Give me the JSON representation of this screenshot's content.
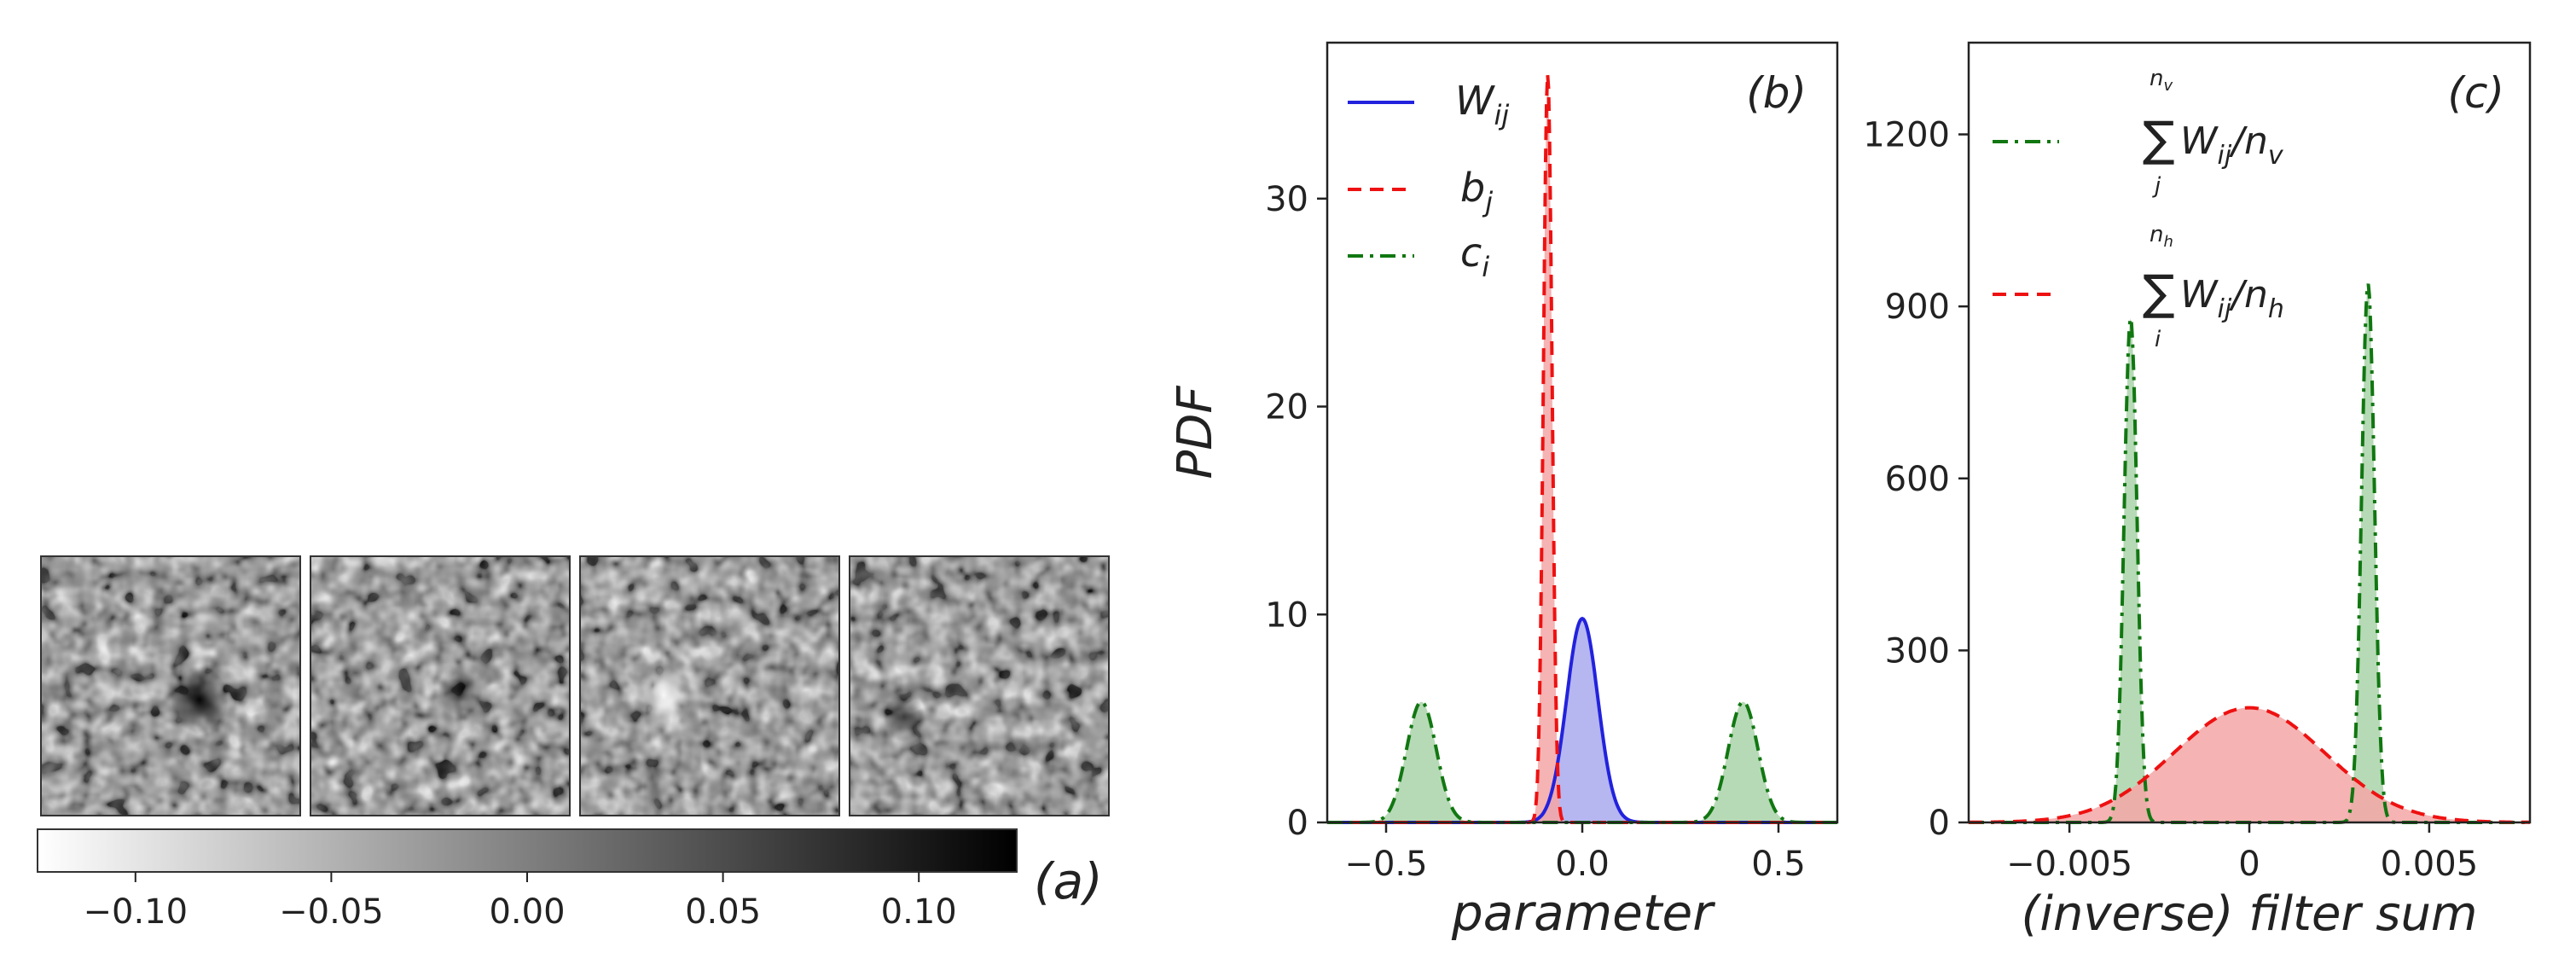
{
  "chart_data": [
    {
      "panel": "a",
      "type": "heatmap",
      "label": "(a)",
      "n_filters": 4,
      "colorbar": {
        "range": [
          -0.125,
          0.125
        ],
        "ticks": [
          -0.1,
          -0.05,
          0.0,
          0.05,
          0.1
        ],
        "tick_labels": [
          "−0.10",
          "−0.05",
          "0.00",
          "0.05",
          "0.10"
        ],
        "colormap": "gray_r"
      }
    },
    {
      "panel": "b",
      "type": "line",
      "label": "(b)",
      "xlabel": "parameter",
      "ylabel": "PDF",
      "xlim": [
        -0.65,
        0.65
      ],
      "ylim": [
        0,
        37.5
      ],
      "xticks": [
        -0.5,
        0.0,
        0.5
      ],
      "xtick_labels": [
        "−0.5",
        "0.0",
        "0.5"
      ],
      "yticks": [
        0,
        10,
        20,
        30
      ],
      "ytick_labels": [
        "0",
        "10",
        "20",
        "30"
      ],
      "legend": "top-left",
      "series": [
        {
          "name": "W_ij",
          "legend_main": "W",
          "legend_sub": "ij",
          "color": "#2222dd",
          "style": "solid",
          "components": [
            {
              "mean": 0.0,
              "peak": 9.8,
              "sigma": 0.04
            }
          ],
          "fill": "#a9a9ee"
        },
        {
          "name": "b_j",
          "legend_main": "b",
          "legend_sub": "j",
          "color": "#ee1111",
          "style": "dashed",
          "components": [
            {
              "mean": -0.088,
              "peak": 36.0,
              "sigma": 0.011
            }
          ],
          "fill": "#f4a6a6"
        },
        {
          "name": "c_i",
          "legend_main": "c",
          "legend_sub": "i",
          "color": "#117711",
          "style": "dashdot",
          "components": [
            {
              "mean": -0.41,
              "peak": 5.8,
              "sigma": 0.038
            },
            {
              "mean": 0.41,
              "peak": 5.8,
              "sigma": 0.038
            }
          ],
          "fill": "#a9d3a9"
        }
      ]
    },
    {
      "panel": "c",
      "type": "line",
      "label": "(c)",
      "xlabel": "(inverse) filter sum",
      "ylabel": "",
      "xlim": [
        -0.0078,
        0.0078
      ],
      "ylim": [
        0,
        1360
      ],
      "xticks": [
        -0.005,
        0,
        0.005
      ],
      "xtick_labels": [
        "−0.005",
        "0",
        "0.005"
      ],
      "yticks": [
        0,
        300,
        600,
        900,
        1200
      ],
      "ytick_labels": [
        "0",
        "300",
        "600",
        "900",
        "1200"
      ],
      "legend": "top-left",
      "series": [
        {
          "name": "Σ_j W_ij / n_v",
          "legend_sum_top": "n",
          "legend_sum_top_sub": "v",
          "legend_sum_bottom": "j",
          "legend_main": "W",
          "legend_main_sub": "ij",
          "legend_div": "/n",
          "legend_div_sub": "v",
          "color": "#117711",
          "style": "dashdot",
          "components": [
            {
              "mean": -0.0033,
              "peak": 880,
              "sigma": 0.00018
            },
            {
              "mean": 0.0033,
              "peak": 940,
              "sigma": 0.00018
            }
          ],
          "fill": "#a9d3a9"
        },
        {
          "name": "Σ_i W_ij / n_h",
          "legend_sum_top": "n",
          "legend_sum_top_sub": "h",
          "legend_sum_bottom": "i",
          "legend_main": "W",
          "legend_main_sub": "ij",
          "legend_div": "/n",
          "legend_div_sub": "h",
          "color": "#ee1111",
          "style": "dashed",
          "components": [
            {
              "mean": 0.0,
              "peak": 200,
              "sigma": 0.0021
            }
          ],
          "fill": "#f4a6a6"
        }
      ]
    }
  ]
}
